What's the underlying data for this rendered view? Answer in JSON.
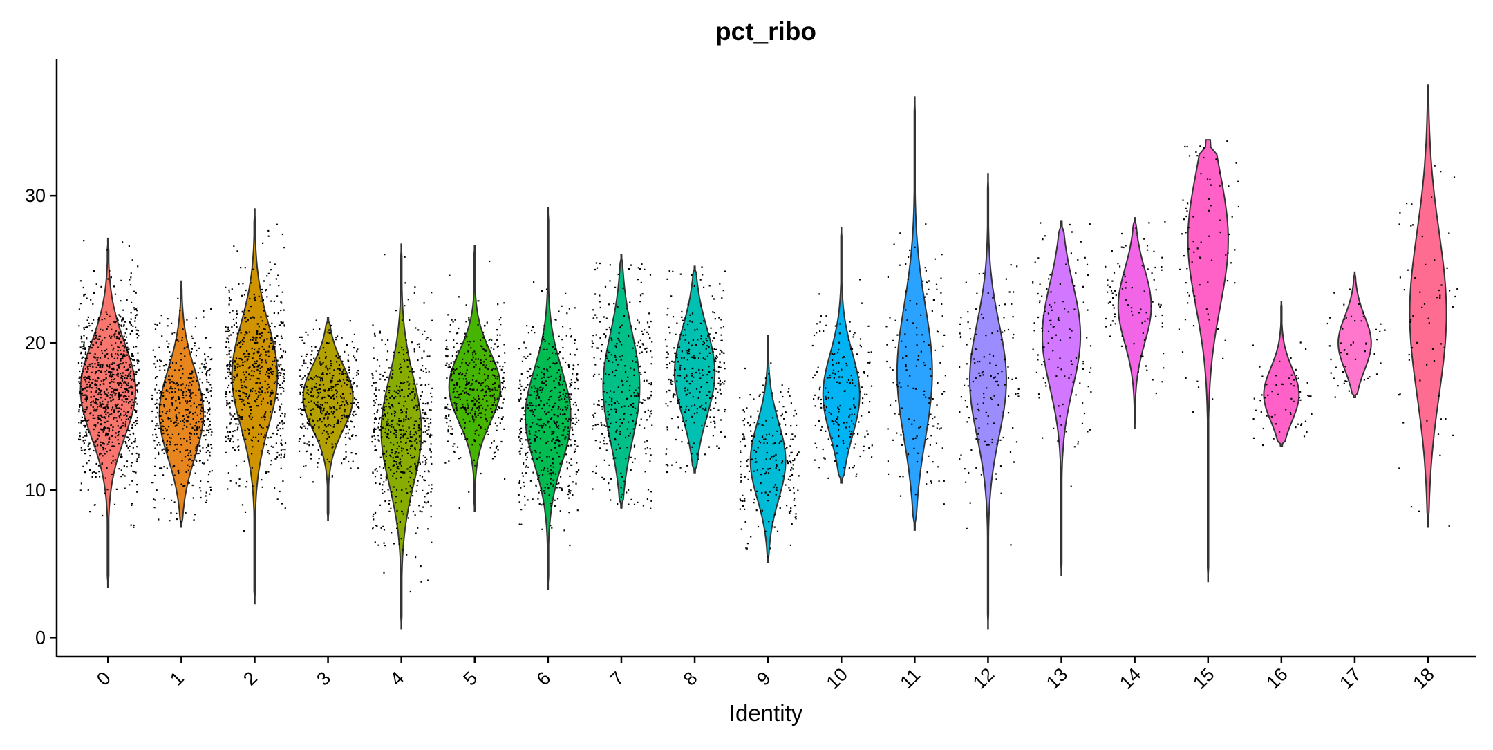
{
  "chart_data": {
    "type": "violin",
    "title": "pct_ribo",
    "xlabel": "Identity",
    "ylabel": "",
    "ylim": [
      -1.3,
      39.3
    ],
    "yticks": [
      0,
      10,
      20,
      30
    ],
    "grid": false,
    "legend": "none",
    "categories": [
      "0",
      "1",
      "2",
      "3",
      "4",
      "5",
      "6",
      "7",
      "8",
      "9",
      "10",
      "11",
      "12",
      "13",
      "14",
      "15",
      "16",
      "17",
      "18"
    ],
    "series": [
      {
        "category": "0",
        "min": 3.4,
        "max": 27.1,
        "peak": 16.8,
        "width": 0.75,
        "spread": 3.2,
        "n_points": 900,
        "color": "#F8766D"
      },
      {
        "category": "1",
        "min": 7.5,
        "max": 24.2,
        "peak": 15.2,
        "width": 0.6,
        "spread": 3.0,
        "n_points": 520,
        "color": "#E7851E"
      },
      {
        "category": "2",
        "min": 2.3,
        "max": 29.1,
        "peak": 17.8,
        "width": 0.62,
        "spread": 3.5,
        "n_points": 620,
        "color": "#D09400"
      },
      {
        "category": "3",
        "min": 8.0,
        "max": 21.7,
        "peak": 16.3,
        "width": 0.68,
        "spread": 2.2,
        "n_points": 420,
        "color": "#B2A100"
      },
      {
        "category": "4",
        "min": 0.6,
        "max": 26.7,
        "peak": 14.0,
        "width": 0.55,
        "spread": 3.6,
        "n_points": 560,
        "color": "#89AC00"
      },
      {
        "category": "5",
        "min": 8.6,
        "max": 26.6,
        "peak": 17.0,
        "width": 0.7,
        "spread": 2.4,
        "n_points": 430,
        "color": "#45B500"
      },
      {
        "category": "6",
        "min": 3.3,
        "max": 29.2,
        "peak": 15.0,
        "width": 0.62,
        "spread": 3.2,
        "n_points": 500,
        "color": "#00BC51"
      },
      {
        "category": "7",
        "min": 8.8,
        "max": 26.0,
        "peak": 17.0,
        "width": 0.5,
        "spread": 3.6,
        "n_points": 330,
        "color": "#00C087"
      },
      {
        "category": "8",
        "min": 11.2,
        "max": 25.2,
        "peak": 18.0,
        "width": 0.55,
        "spread": 3.0,
        "n_points": 300,
        "color": "#00C0B2"
      },
      {
        "category": "9",
        "min": 5.1,
        "max": 20.5,
        "peak": 12.0,
        "width": 0.48,
        "spread": 2.6,
        "n_points": 230,
        "color": "#00BCD6"
      },
      {
        "category": "10",
        "min": 10.5,
        "max": 27.8,
        "peak": 16.5,
        "width": 0.5,
        "spread": 2.8,
        "n_points": 190,
        "color": "#00B3F2"
      },
      {
        "category": "11",
        "min": 7.3,
        "max": 36.7,
        "peak": 18.0,
        "width": 0.48,
        "spread": 4.5,
        "n_points": 150,
        "color": "#29A3FF"
      },
      {
        "category": "12",
        "min": 0.6,
        "max": 31.5,
        "peak": 17.5,
        "width": 0.5,
        "spread": 3.8,
        "n_points": 140,
        "color": "#9C8DFF"
      },
      {
        "category": "13",
        "min": 4.2,
        "max": 28.3,
        "peak": 20.5,
        "width": 0.52,
        "spread": 3.5,
        "n_points": 120,
        "color": "#D277FF"
      },
      {
        "category": "14",
        "min": 14.2,
        "max": 28.5,
        "peak": 22.5,
        "width": 0.45,
        "spread": 2.5,
        "n_points": 90,
        "color": "#F265E7"
      },
      {
        "category": "15",
        "min": 3.8,
        "max": 33.8,
        "peak": 27.0,
        "width": 0.55,
        "spread": 4.5,
        "n_points": 80,
        "color": "#FF61C7"
      },
      {
        "category": "16",
        "min": 13.0,
        "max": 22.8,
        "peak": 16.5,
        "width": 0.48,
        "spread": 1.8,
        "n_points": 60,
        "color": "#FF61C9"
      },
      {
        "category": "17",
        "min": 16.3,
        "max": 24.8,
        "peak": 20.0,
        "width": 0.45,
        "spread": 1.8,
        "n_points": 50,
        "color": "#F7C"
      },
      {
        "category": "18",
        "min": 7.5,
        "max": 37.5,
        "peak": 22.0,
        "width": 0.5,
        "spread": 5.5,
        "n_points": 60,
        "color": "#FF6C91"
      }
    ]
  }
}
